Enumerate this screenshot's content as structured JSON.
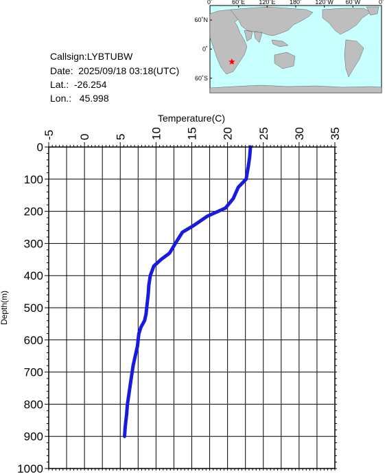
{
  "station": {
    "callsign_label": "Callsign:LYBTUBW",
    "date_label": "Date:  2025/09/18 03:18(UTC)",
    "lat_label": "Lat.:  -26.254",
    "lon_label": "Lon.:   45.998"
  },
  "map": {
    "lon_ticks": [
      "0˚",
      "60˚E",
      "120˚E",
      "180˚",
      "120˚W",
      "60˚W",
      "0˚"
    ],
    "lat_ticks": [
      "60˚N",
      "0˚",
      "60˚S"
    ],
    "marker": {
      "lat": -26.254,
      "lon": 45.998
    },
    "colors": {
      "ocean": "#c8ffff",
      "land": "#bebebe",
      "marker": "#ff0000"
    }
  },
  "chart_data": {
    "type": "line",
    "xlabel": "Temperature(C)",
    "ylabel": "Depth(m)",
    "xlim": [
      -5,
      35
    ],
    "ylim": [
      0,
      1000
    ],
    "y_inverted": true,
    "x_axis_position": "top",
    "x_ticks": [
      "-5",
      "0",
      "5",
      "10",
      "15",
      "20",
      "25",
      "30",
      "35"
    ],
    "y_ticks": [
      "0",
      "100",
      "200",
      "300",
      "400",
      "500",
      "600",
      "700",
      "800",
      "900",
      "1000"
    ],
    "grid": true,
    "line_color": "#1a1adf",
    "series": [
      {
        "x": [
          23.2,
          23.1,
          22.9,
          22.6,
          21.5,
          20.8,
          19.7,
          17.2,
          15.2,
          13.7,
          12.7,
          11.9,
          10.7,
          9.7,
          9.2,
          9.0,
          8.9,
          8.7,
          8.6,
          8.4,
          7.9,
          7.6,
          7.5,
          7.4,
          7.1,
          6.8,
          6.6,
          6.4,
          6.2,
          6.0,
          5.9,
          5.7,
          5.6
        ],
        "y": [
          0,
          30,
          60,
          100,
          125,
          160,
          190,
          215,
          245,
          265,
          300,
          330,
          350,
          370,
          400,
          430,
          460,
          500,
          520,
          540,
          560,
          580,
          600,
          620,
          650,
          680,
          710,
          740,
          770,
          800,
          830,
          870,
          900
        ]
      }
    ]
  }
}
